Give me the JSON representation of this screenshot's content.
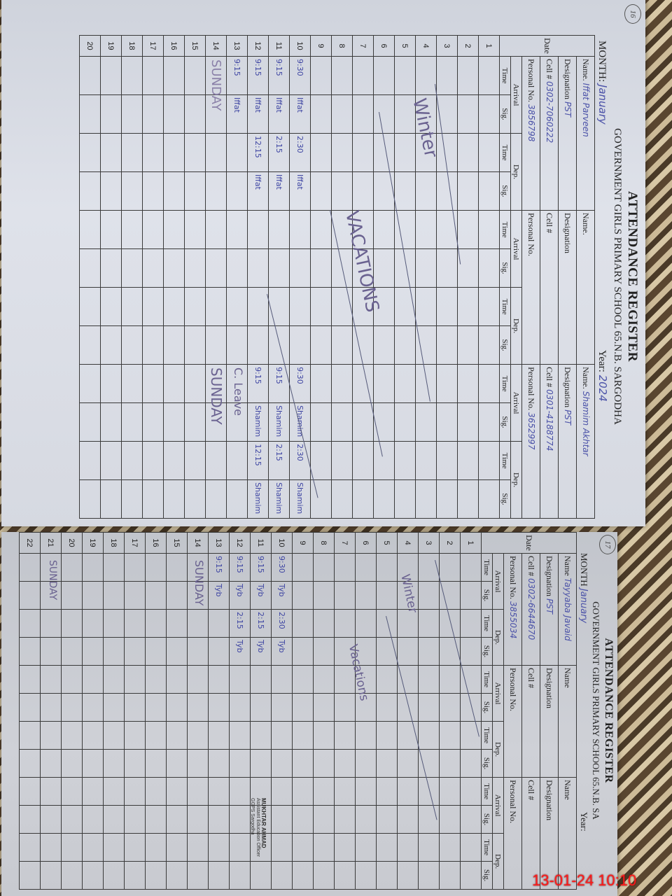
{
  "left_page": {
    "page_number": "16",
    "title": "ATTENDANCE REGISTER",
    "school": "GOVERNMENT GIRLS PRIMARY SCHOOL 65.N.B. SARGODHA",
    "month_label": "MONTH:",
    "month_value": "January",
    "year_label": "Year:",
    "year_value": "2024",
    "labels": {
      "date": "Date",
      "name": "Name.",
      "designation": "Designation",
      "cell": "Cell #",
      "personal": "Personal No.",
      "arrival": "Arrival",
      "dep": "Dep.",
      "time": "Time",
      "sig": "Sig."
    },
    "teachers": [
      {
        "name": "Iffat Parveen",
        "designation": "PST",
        "cell": "0302-7060222",
        "personal": "3856798"
      },
      {
        "name": "",
        "designation": "",
        "cell": "",
        "personal": ""
      },
      {
        "name": "Shamim Akhtar",
        "designation": "PST",
        "cell": "0301-4188774",
        "personal": "3652997"
      }
    ],
    "rows": [
      {
        "day": "1",
        "cells": [
          "",
          "",
          "",
          "",
          "",
          "",
          "",
          "",
          "",
          "",
          "",
          ""
        ]
      },
      {
        "day": "2",
        "cells": [
          "",
          "",
          "",
          "",
          "",
          "",
          "",
          "",
          "",
          "",
          "",
          ""
        ]
      },
      {
        "day": "3",
        "cells": [
          "",
          "",
          "",
          "",
          "",
          "",
          "",
          "",
          "",
          "",
          "",
          ""
        ]
      },
      {
        "day": "4",
        "cells": [
          "",
          "",
          "",
          "",
          "",
          "",
          "",
          "",
          "",
          "",
          "",
          ""
        ]
      },
      {
        "day": "5",
        "cells": [
          "",
          "",
          "",
          "",
          "",
          "",
          "",
          "",
          "",
          "",
          "",
          ""
        ]
      },
      {
        "day": "6",
        "cells": [
          "",
          "",
          "",
          "",
          "",
          "",
          "",
          "",
          "",
          "",
          "",
          ""
        ]
      },
      {
        "day": "7",
        "cells": [
          "",
          "",
          "",
          "",
          "",
          "",
          "",
          "",
          "",
          "",
          "",
          ""
        ]
      },
      {
        "day": "8",
        "cells": [
          "",
          "",
          "",
          "",
          "",
          "",
          "",
          "",
          "",
          "",
          "",
          ""
        ]
      },
      {
        "day": "9",
        "cells": [
          "",
          "",
          "",
          "",
          "",
          "",
          "",
          "",
          "",
          "",
          "",
          ""
        ]
      },
      {
        "day": "10",
        "cells": [
          "9:30",
          "Iffat",
          "2:30",
          "Iffat",
          "",
          "",
          "",
          "",
          "9:30",
          "Shamim",
          "2:30",
          "Shamim"
        ]
      },
      {
        "day": "11",
        "cells": [
          "9:15",
          "Iffat",
          "2:15",
          "Iffat",
          "",
          "",
          "",
          "",
          "9:15",
          "Shamim",
          "2:15",
          "Shamim"
        ]
      },
      {
        "day": "12",
        "cells": [
          "9:15",
          "Iffat",
          "12:15",
          "Iffat",
          "",
          "",
          "",
          "",
          "9:15",
          "Shamim",
          "12:15",
          "Shamim"
        ]
      },
      {
        "day": "13",
        "cells": [
          "9:15",
          "Iffat",
          "",
          "",
          "",
          "",
          "",
          "",
          "",
          "",
          "",
          ""
        ]
      },
      {
        "day": "14",
        "cells": [
          "",
          "",
          "",
          "",
          "",
          "",
          "",
          "",
          "",
          "",
          "",
          ""
        ]
      },
      {
        "day": "15",
        "cells": [
          "",
          "",
          "",
          "",
          "",
          "",
          "",
          "",
          "",
          "",
          "",
          ""
        ]
      },
      {
        "day": "16",
        "cells": [
          "",
          "",
          "",
          "",
          "",
          "",
          "",
          "",
          "",
          "",
          "",
          ""
        ]
      },
      {
        "day": "17",
        "cells": [
          "",
          "",
          "",
          "",
          "",
          "",
          "",
          "",
          "",
          "",
          "",
          ""
        ]
      },
      {
        "day": "18",
        "cells": [
          "",
          "",
          "",
          "",
          "",
          "",
          "",
          "",
          "",
          "",
          "",
          ""
        ]
      },
      {
        "day": "19",
        "cells": [
          "",
          "",
          "",
          "",
          "",
          "",
          "",
          "",
          "",
          "",
          "",
          ""
        ]
      },
      {
        "day": "20",
        "cells": [
          "",
          "",
          "",
          "",
          "",
          "",
          "",
          "",
          "",
          "",
          "",
          ""
        ]
      }
    ],
    "notes": {
      "winter": "Winter",
      "vacations": "VACATIONS",
      "sunday": "SUNDAY",
      "leave": "C. Leave",
      "sunday_2": "SUNDAY"
    }
  },
  "right_page": {
    "page_number": "17",
    "title": "ATTENDANCE REGISTER",
    "school": "GOVERNMENT GIRLS PRIMARY SCHOOL 65.N.B. SA",
    "month_label": "MONTH",
    "month_value": "January",
    "year_label": "Year:",
    "labels": {
      "date": "Date",
      "name": "Name",
      "designation": "Designation",
      "cell": "Cell #",
      "personal": "Personal No.",
      "arrival": "Arrival",
      "dep": "Dep.",
      "time": "Time",
      "sig": "Sig."
    },
    "teachers": [
      {
        "name": "Tayyaba Javaid",
        "designation": "PST",
        "cell": "0302-6644670",
        "personal": "3855034"
      },
      {
        "name": "",
        "designation": "",
        "cell": "",
        "personal": ""
      },
      {
        "name": "",
        "designation": "",
        "cell": "",
        "personal": ""
      }
    ],
    "rows": [
      {
        "day": "1",
        "cells": [
          "",
          "",
          "",
          "",
          "",
          "",
          "",
          "",
          "",
          "",
          "",
          ""
        ]
      },
      {
        "day": "2",
        "cells": [
          "",
          "",
          "",
          "",
          "",
          "",
          "",
          "",
          "",
          "",
          "",
          ""
        ]
      },
      {
        "day": "3",
        "cells": [
          "",
          "",
          "",
          "",
          "",
          "",
          "",
          "",
          "",
          "",
          "",
          ""
        ]
      },
      {
        "day": "4",
        "cells": [
          "",
          "",
          "",
          "",
          "",
          "",
          "",
          "",
          "",
          "",
          "",
          ""
        ]
      },
      {
        "day": "5",
        "cells": [
          "",
          "",
          "",
          "",
          "",
          "",
          "",
          "",
          "",
          "",
          "",
          ""
        ]
      },
      {
        "day": "6",
        "cells": [
          "",
          "",
          "",
          "",
          "",
          "",
          "",
          "",
          "",
          "",
          "",
          ""
        ]
      },
      {
        "day": "7",
        "cells": [
          "",
          "",
          "",
          "",
          "",
          "",
          "",
          "",
          "",
          "",
          "",
          ""
        ]
      },
      {
        "day": "8",
        "cells": [
          "",
          "",
          "",
          "",
          "",
          "",
          "",
          "",
          "",
          "",
          "",
          ""
        ]
      },
      {
        "day": "9",
        "cells": [
          "",
          "",
          "",
          "",
          "",
          "",
          "",
          "",
          "",
          "",
          "",
          ""
        ]
      },
      {
        "day": "10",
        "cells": [
          "9:30",
          "Tyb",
          "2:30",
          "Tyb",
          "",
          "",
          "",
          "",
          "",
          "",
          "",
          ""
        ]
      },
      {
        "day": "11",
        "cells": [
          "9:15",
          "Tyb",
          "2:15",
          "Tyb",
          "",
          "",
          "",
          "",
          "",
          "",
          "",
          ""
        ]
      },
      {
        "day": "12",
        "cells": [
          "9:15",
          "Tyb",
          "2:15",
          "Tyb",
          "",
          "",
          "",
          "",
          "",
          "",
          "",
          ""
        ]
      },
      {
        "day": "13",
        "cells": [
          "9:15",
          "Tyb",
          "",
          "",
          "",
          "",
          "",
          "",
          "",
          "",
          "",
          ""
        ]
      },
      {
        "day": "14",
        "cells": [
          "",
          "",
          "",
          "",
          "",
          "",
          "",
          "",
          "",
          "",
          "",
          ""
        ]
      },
      {
        "day": "15",
        "cells": [
          "",
          "",
          "",
          "",
          "",
          "",
          "",
          "",
          "",
          "",
          "",
          ""
        ]
      },
      {
        "day": "16",
        "cells": [
          "",
          "",
          "",
          "",
          "",
          "",
          "",
          "",
          "",
          "",
          "",
          ""
        ]
      },
      {
        "day": "17",
        "cells": [
          "",
          "",
          "",
          "",
          "",
          "",
          "",
          "",
          "",
          "",
          "",
          ""
        ]
      },
      {
        "day": "18",
        "cells": [
          "",
          "",
          "",
          "",
          "",
          "",
          "",
          "",
          "",
          "",
          "",
          ""
        ]
      },
      {
        "day": "19",
        "cells": [
          "",
          "",
          "",
          "",
          "",
          "",
          "",
          "",
          "",
          "",
          "",
          ""
        ]
      },
      {
        "day": "20",
        "cells": [
          "",
          "",
          "",
          "",
          "",
          "",
          "",
          "",
          "",
          "",
          "",
          ""
        ]
      },
      {
        "day": "21",
        "cells": [
          "",
          "",
          "",
          "",
          "",
          "",
          "",
          "",
          "",
          "",
          "",
          ""
        ]
      },
      {
        "day": "22",
        "cells": [
          "",
          "",
          "",
          "",
          "",
          "",
          "",
          "",
          "",
          "",
          "",
          ""
        ]
      }
    ],
    "notes": {
      "winter": "Winter",
      "vacations": "Vacations",
      "sunday": "SUNDAY",
      "sunday_2": "SUNDAY"
    },
    "stamp": [
      "MUKHTAR AHMAD",
      "Assistant Education Officer",
      "GGPS Sargodha"
    ]
  },
  "timestamp": "13-01-24  10:10"
}
